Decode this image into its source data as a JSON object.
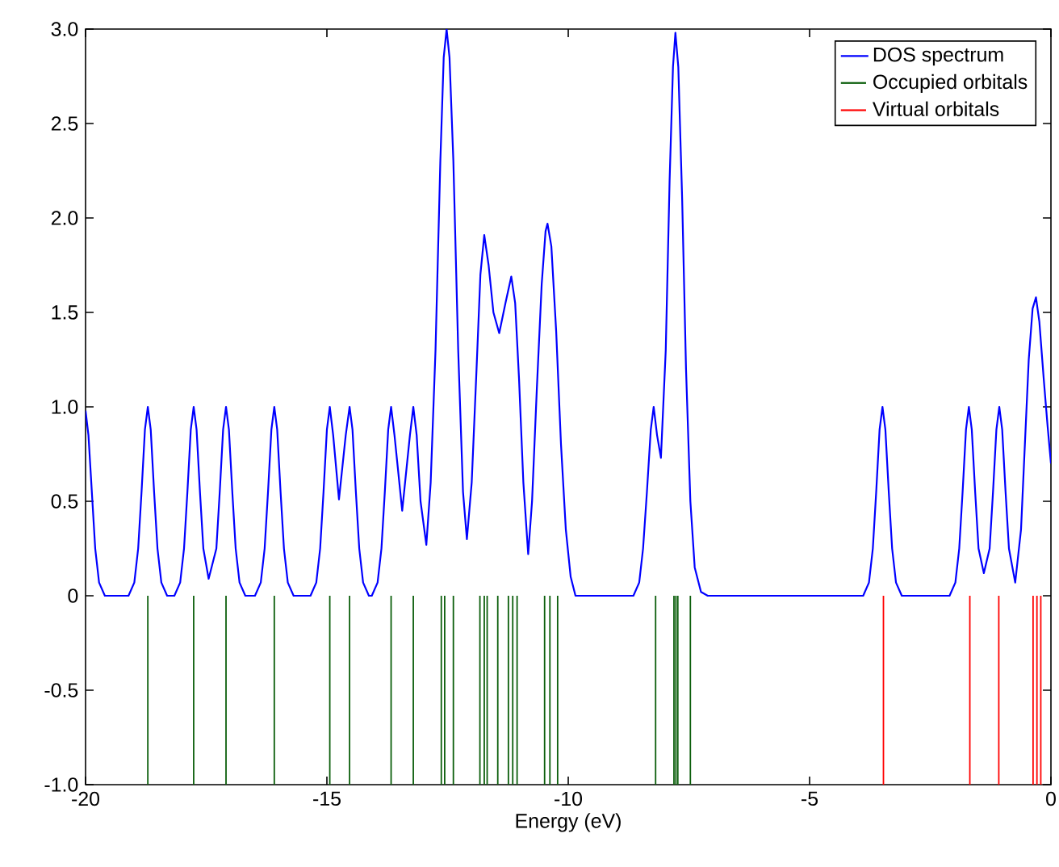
{
  "chart_data": {
    "type": "line",
    "xlabel": "Energy (eV)",
    "xlim": [
      -20,
      0
    ],
    "ylim": [
      -1.0,
      3.0
    ],
    "xticks": [
      -20,
      -15,
      -10,
      -5,
      0
    ],
    "yticks": [
      {
        "value": -1.0,
        "label": "-1.0"
      },
      {
        "value": -0.5,
        "label": "-0.5"
      },
      0,
      {
        "value": 0.5,
        "label": "0.5"
      },
      {
        "value": 1.0,
        "label": "1.0"
      },
      {
        "value": 1.5,
        "label": "1.5"
      },
      {
        "value": 2.0,
        "label": "2.0"
      },
      {
        "value": 2.5,
        "label": "2.5"
      },
      {
        "value": 3.0,
        "label": "3.0"
      }
    ],
    "grid": false,
    "legend": "top right",
    "marker": "none",
    "series": [
      {
        "name": "DOS spectrum",
        "color": "#0000ff",
        "line_style": "solid",
        "x": [
          -20,
          -19.94,
          -19.87,
          -19.8,
          -19.72,
          -19.6,
          -19.11,
          -18.99,
          -18.91,
          -18.84,
          -18.77,
          -18.71,
          -18.65,
          -18.58,
          -18.51,
          -18.43,
          -18.31,
          -18.16,
          -18.04,
          -17.96,
          -17.89,
          -17.82,
          -17.76,
          -17.7,
          -17.63,
          -17.56,
          -17.45,
          -17.29,
          -17.22,
          -17.15,
          -17.09,
          -17.03,
          -16.96,
          -16.89,
          -16.81,
          -16.69,
          -16.49,
          -16.37,
          -16.29,
          -16.22,
          -16.15,
          -16.09,
          -16.03,
          -15.96,
          -15.89,
          -15.81,
          -15.69,
          -15.34,
          -15.22,
          -15.14,
          -15.07,
          -15.0,
          -14.94,
          -14.87,
          -14.75,
          -14.61,
          -14.53,
          -14.47,
          -14.4,
          -14.33,
          -14.25,
          -14.13,
          -14.07,
          -13.95,
          -13.87,
          -13.8,
          -13.73,
          -13.67,
          -13.6,
          -13.44,
          -13.28,
          -13.21,
          -13.14,
          -13.06,
          -12.94,
          -12.85,
          -12.75,
          -12.65,
          -12.58,
          -12.52,
          -12.46,
          -12.38,
          -12.28,
          -12.18,
          -12.1,
          -12.0,
          -11.9,
          -11.82,
          -11.74,
          -11.65,
          -11.55,
          -11.43,
          -11.3,
          -11.18,
          -11.1,
          -11.02,
          -10.93,
          -10.83,
          -10.75,
          -10.65,
          -10.55,
          -10.47,
          -10.43,
          -10.35,
          -10.25,
          -10.15,
          -10.05,
          -9.95,
          -9.85,
          -8.65,
          -8.53,
          -8.45,
          -8.37,
          -8.29,
          -8.23,
          -8.16,
          -8.08,
          -7.98,
          -7.9,
          -7.83,
          -7.78,
          -7.72,
          -7.64,
          -7.56,
          -7.47,
          -7.38,
          -7.25,
          -7.11,
          -3.89,
          -3.77,
          -3.69,
          -3.62,
          -3.55,
          -3.49,
          -3.43,
          -3.36,
          -3.29,
          -3.21,
          -3.09,
          -2.1,
          -1.98,
          -1.9,
          -1.83,
          -1.76,
          -1.7,
          -1.64,
          -1.57,
          -1.5,
          -1.39,
          -1.27,
          -1.2,
          -1.13,
          -1.07,
          -1.01,
          -0.94,
          -0.87,
          -0.74,
          -0.62,
          -0.54,
          -0.46,
          -0.38,
          -0.31,
          -0.24,
          -0.15,
          -0.07,
          0
        ],
        "values": [
          0.98,
          0.85,
          0.55,
          0.25,
          0.07,
          0,
          0,
          0.07,
          0.25,
          0.55,
          0.88,
          1,
          0.88,
          0.55,
          0.25,
          0.07,
          0,
          0,
          0.07,
          0.25,
          0.55,
          0.88,
          1,
          0.88,
          0.55,
          0.25,
          0.09,
          0.25,
          0.55,
          0.88,
          1,
          0.88,
          0.55,
          0.25,
          0.07,
          0,
          0,
          0.07,
          0.25,
          0.55,
          0.88,
          1,
          0.88,
          0.55,
          0.25,
          0.07,
          0,
          0,
          0.07,
          0.25,
          0.55,
          0.88,
          1,
          0.85,
          0.51,
          0.85,
          1,
          0.88,
          0.55,
          0.25,
          0.07,
          0,
          0,
          0.07,
          0.25,
          0.55,
          0.88,
          1,
          0.85,
          0.45,
          0.85,
          1,
          0.85,
          0.5,
          0.27,
          0.6,
          1.3,
          2.3,
          2.85,
          3.0,
          2.85,
          2.3,
          1.3,
          0.55,
          0.3,
          0.6,
          1.2,
          1.7,
          1.91,
          1.75,
          1.5,
          1.39,
          1.55,
          1.69,
          1.55,
          1.15,
          0.6,
          0.22,
          0.5,
          1.1,
          1.65,
          1.93,
          1.97,
          1.85,
          1.4,
          0.8,
          0.35,
          0.1,
          0,
          0,
          0.07,
          0.25,
          0.55,
          0.88,
          1.0,
          0.85,
          0.73,
          1.3,
          2.2,
          2.8,
          2.98,
          2.8,
          2.1,
          1.2,
          0.5,
          0.15,
          0.02,
          0,
          0,
          0.07,
          0.25,
          0.55,
          0.88,
          1,
          0.88,
          0.55,
          0.25,
          0.07,
          0,
          0,
          0.07,
          0.25,
          0.55,
          0.88,
          1,
          0.88,
          0.55,
          0.25,
          0.12,
          0.25,
          0.55,
          0.88,
          1,
          0.88,
          0.55,
          0.25,
          0.07,
          0.35,
          0.8,
          1.25,
          1.52,
          1.58,
          1.45,
          1.15,
          0.9,
          0.7
        ]
      },
      {
        "name": "Occupied orbitals",
        "type": "bar",
        "color": "#0b5e0b",
        "x": [
          -18.71,
          -17.76,
          -17.09,
          -16.09,
          -14.94,
          -14.53,
          -13.67,
          -13.21,
          -12.63,
          -12.56,
          -12.38,
          -11.83,
          -11.74,
          -11.68,
          -11.46,
          -11.24,
          -11.15,
          -11.06,
          -10.49,
          -10.38,
          -10.22,
          -8.19,
          -7.81,
          -7.77,
          -7.73,
          -7.47
        ],
        "values": [
          -1,
          -1,
          -1,
          -1,
          -1,
          -1,
          -1,
          -1,
          -1,
          -1,
          -1,
          -1,
          -1,
          -1,
          -1,
          -1,
          -1,
          -1,
          -1,
          -1,
          -1,
          -1,
          -1,
          -1,
          -1,
          -1
        ]
      },
      {
        "name": "Virtual orbitals",
        "type": "bar",
        "color": "#ff0000",
        "x": [
          -3.47,
          -1.68,
          -1.08,
          -0.37,
          -0.29,
          -0.21
        ],
        "values": [
          -1,
          -1,
          -1,
          -1,
          -1,
          -1
        ]
      }
    ]
  }
}
